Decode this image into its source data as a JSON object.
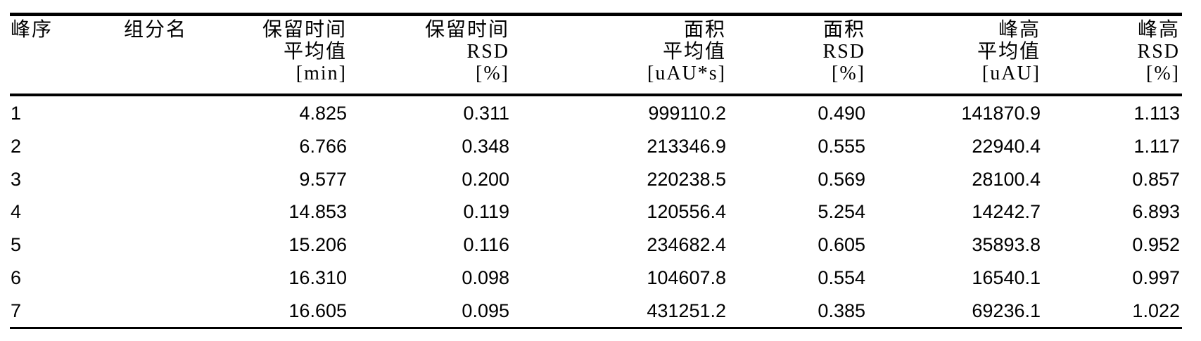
{
  "table": {
    "header": [
      [
        "峰序"
      ],
      [
        "组分名"
      ],
      [
        "保留时间",
        "平均值",
        "[min]"
      ],
      [
        "保留时间",
        "RSD",
        "[%]"
      ],
      [
        "面积",
        "平均值",
        "[uAU*s]"
      ],
      [
        "面积",
        "RSD",
        "[%]"
      ],
      [
        "峰高",
        "平均值",
        "[uAU]"
      ],
      [
        "峰高",
        "RSD",
        "[%]"
      ]
    ],
    "rows": [
      [
        "1",
        "4.825",
        "0.311",
        "999110.2",
        "0.490",
        "141870.9",
        "1.113"
      ],
      [
        "2",
        "6.766",
        "0.348",
        "213346.9",
        "0.555",
        "22940.4",
        "1.117"
      ],
      [
        "3",
        "9.577",
        "0.200",
        "220238.5",
        "0.569",
        "28100.4",
        "0.857"
      ],
      [
        "4",
        "14.853",
        "0.119",
        "120556.4",
        "5.254",
        "14242.7",
        "6.893"
      ],
      [
        "5",
        "15.206",
        "0.116",
        "234682.4",
        "0.605",
        "35893.8",
        "0.952"
      ],
      [
        "6",
        "16.310",
        "0.098",
        "104607.8",
        "0.554",
        "16540.1",
        "0.997"
      ],
      [
        "7",
        "16.605",
        "0.095",
        "431251.2",
        "0.385",
        "69236.1",
        "1.022"
      ]
    ]
  }
}
